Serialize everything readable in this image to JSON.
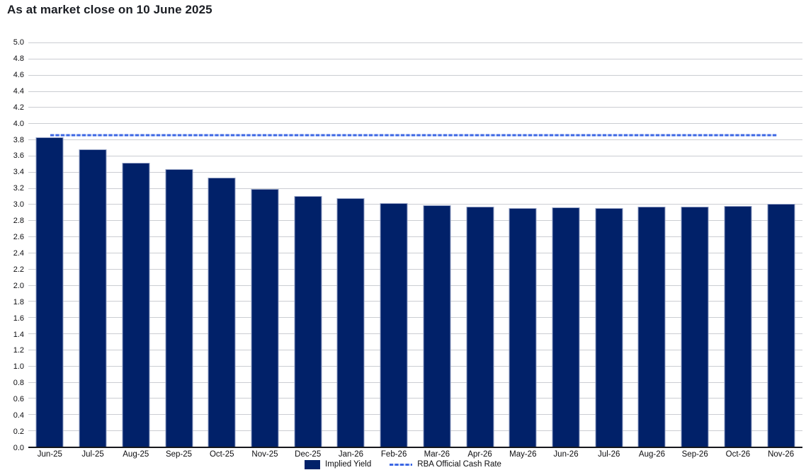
{
  "title": "As at market close on 10 June 2025",
  "chart_data": {
    "type": "bar",
    "categories": [
      "Jun-25",
      "Jul-25",
      "Aug-25",
      "Sep-25",
      "Oct-25",
      "Nov-25",
      "Dec-25",
      "Jan-26",
      "Feb-26",
      "Mar-26",
      "Apr-26",
      "May-26",
      "Jun-26",
      "Jul-26",
      "Aug-26",
      "Sep-26",
      "Oct-26",
      "Nov-26"
    ],
    "series": [
      {
        "name": "Implied Yield",
        "values": [
          3.83,
          3.68,
          3.51,
          3.43,
          3.33,
          3.19,
          3.1,
          3.07,
          3.01,
          2.99,
          2.97,
          2.95,
          2.96,
          2.95,
          2.97,
          2.97,
          2.98,
          3.0
        ]
      }
    ],
    "line": {
      "name": "RBA Official Cash Rate",
      "value": 3.85,
      "style": "dashed"
    },
    "xlabel": "",
    "ylabel": "",
    "ylim": [
      0.0,
      5.0
    ],
    "ytick_step": 0.2,
    "grid": "horizontal",
    "legend_position": "bottom-center",
    "colors": {
      "bar": "#012169",
      "bar_border": "#94a1c5",
      "cash_rate_line": "#3c66e3",
      "gridline": "#cbcdd2",
      "axis": "#17181c",
      "title": "#1b1e24"
    }
  }
}
